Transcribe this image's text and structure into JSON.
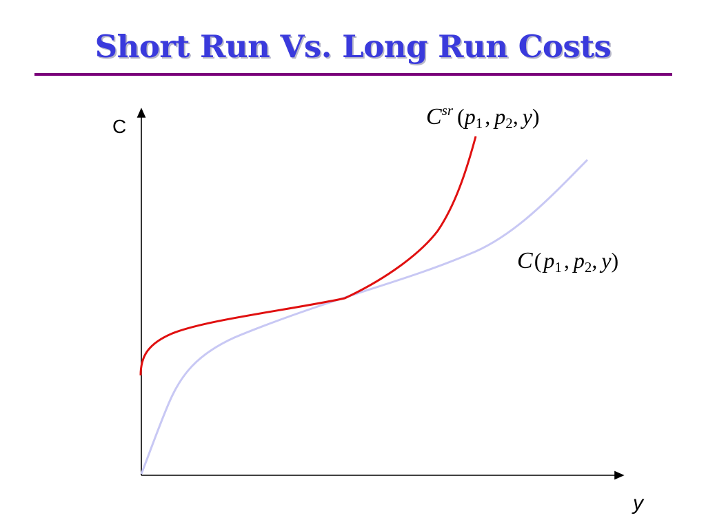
{
  "title": "Short Run Vs. Long Run Costs",
  "axes": {
    "y_label": "C",
    "x_label": "y"
  },
  "curves": {
    "short_run": {
      "color": "#e01010",
      "label_symbol": "C",
      "label_superscript": "sr",
      "label_open": "(",
      "label_arg1": "p",
      "label_arg1_sub": "1",
      "label_arg2": "p",
      "label_arg2_sub": "2",
      "label_arg3": "y",
      "label_close": ")",
      "label_sep": ","
    },
    "long_run": {
      "color": "#c8c8f4",
      "label_symbol": "C",
      "label_open": "(",
      "label_arg1": "p",
      "label_arg1_sub": "1",
      "label_arg2": "p",
      "label_arg2_sub": "2",
      "label_arg3": "y",
      "label_close": ")",
      "label_sep": ","
    }
  },
  "colors": {
    "title": "#3a3adc",
    "rule": "#7a007a",
    "axes": "#000000"
  }
}
